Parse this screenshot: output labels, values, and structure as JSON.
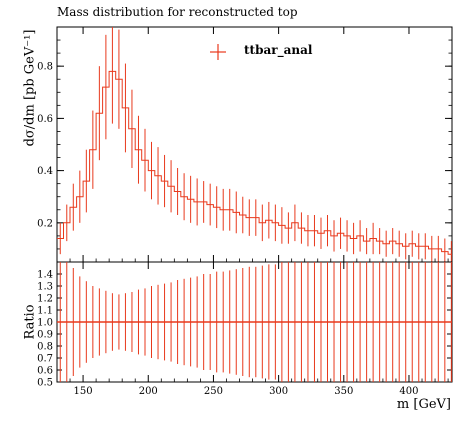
{
  "chart_data": [
    {
      "type": "line",
      "panel": "main",
      "title": "Mass distribution for reconstructed top",
      "ylabel": "dσ/dm [pb GeV⁻¹]",
      "xlabel": "",
      "xlim": [
        130,
        433
      ],
      "ylim": [
        0.05,
        0.95
      ],
      "yticks": [
        "0.2",
        "0.4",
        "0.6",
        "0.8"
      ],
      "series": [
        {
          "name": "ttbar_anal",
          "color": "#e8391c",
          "style": "histogram with error bars",
          "x": [
            130,
            135,
            140,
            145,
            150,
            155,
            160,
            165,
            170,
            175,
            180,
            185,
            190,
            195,
            200,
            205,
            210,
            215,
            220,
            225,
            230,
            235,
            240,
            245,
            250,
            255,
            260,
            265,
            270,
            275,
            280,
            285,
            290,
            295,
            300,
            305,
            310,
            315,
            320,
            325,
            330,
            335,
            340,
            345,
            350,
            355,
            360,
            365,
            370,
            375,
            380,
            385,
            390,
            395,
            400,
            405,
            410,
            415,
            420,
            425,
            430
          ],
          "y": [
            0.14,
            0.2,
            0.26,
            0.3,
            0.36,
            0.48,
            0.62,
            0.72,
            0.78,
            0.75,
            0.64,
            0.56,
            0.48,
            0.44,
            0.4,
            0.38,
            0.36,
            0.34,
            0.32,
            0.3,
            0.29,
            0.28,
            0.28,
            0.27,
            0.26,
            0.25,
            0.25,
            0.24,
            0.23,
            0.22,
            0.22,
            0.2,
            0.21,
            0.2,
            0.19,
            0.18,
            0.2,
            0.18,
            0.17,
            0.17,
            0.16,
            0.17,
            0.15,
            0.16,
            0.15,
            0.14,
            0.15,
            0.13,
            0.14,
            0.13,
            0.12,
            0.13,
            0.12,
            0.11,
            0.12,
            0.11,
            0.11,
            0.1,
            0.1,
            0.09,
            0.08
          ],
          "err": [
            0.06,
            0.07,
            0.09,
            0.1,
            0.12,
            0.15,
            0.18,
            0.2,
            0.2,
            0.19,
            0.17,
            0.15,
            0.13,
            0.12,
            0.11,
            0.11,
            0.1,
            0.1,
            0.09,
            0.09,
            0.09,
            0.09,
            0.08,
            0.08,
            0.08,
            0.08,
            0.08,
            0.08,
            0.07,
            0.07,
            0.07,
            0.07,
            0.07,
            0.07,
            0.07,
            0.06,
            0.07,
            0.06,
            0.06,
            0.06,
            0.06,
            0.06,
            0.06,
            0.06,
            0.06,
            0.06,
            0.06,
            0.05,
            0.06,
            0.05,
            0.05,
            0.05,
            0.05,
            0.05,
            0.05,
            0.05,
            0.05,
            0.05,
            0.05,
            0.05,
            0.05
          ]
        }
      ]
    },
    {
      "type": "line",
      "panel": "ratio",
      "ylabel": "Ratio",
      "xlabel": "m [GeV]",
      "xlim": [
        130,
        433
      ],
      "ylim": [
        0.5,
        1.5
      ],
      "yticks": [
        "0.5",
        "0.6",
        "0.7",
        "0.8",
        "0.9",
        "1.0",
        "1.1",
        "1.2",
        "1.3",
        "1.4"
      ],
      "xticks": [
        150,
        200,
        250,
        300,
        350,
        400
      ],
      "series": [
        {
          "name": "ratio",
          "color": "#e8391c",
          "x": [
            130,
            135,
            140,
            145,
            150,
            155,
            160,
            165,
            170,
            175,
            180,
            185,
            190,
            195,
            200,
            205,
            210,
            215,
            220,
            225,
            230,
            235,
            240,
            245,
            250,
            255,
            260,
            265,
            270,
            275,
            280,
            285,
            290,
            295,
            300,
            305,
            310,
            315,
            320,
            325,
            330,
            335,
            340,
            345,
            350,
            355,
            360,
            365,
            370,
            375,
            380,
            385,
            390,
            395,
            400,
            405,
            410,
            415,
            420,
            425,
            430
          ],
          "y": [
            1.0,
            1.0,
            1.0,
            1.0,
            1.0,
            1.0,
            1.0,
            1.0,
            1.0,
            1.0,
            1.0,
            1.0,
            1.0,
            1.0,
            1.0,
            1.0,
            1.0,
            1.0,
            1.0,
            1.0,
            1.0,
            1.0,
            1.0,
            1.0,
            1.0,
            1.0,
            1.0,
            1.0,
            1.0,
            1.0,
            1.0,
            1.0,
            1.0,
            1.0,
            1.0,
            1.0,
            1.0,
            1.0,
            1.0,
            1.0,
            1.0,
            1.0,
            1.0,
            1.0,
            1.0,
            1.0,
            1.0,
            1.0,
            1.0,
            1.0,
            1.0,
            1.0,
            1.0,
            1.0,
            1.0,
            1.0,
            1.0,
            1.0,
            1.0,
            1.0,
            1.0
          ],
          "err": [
            0.5,
            0.5,
            0.45,
            0.38,
            0.34,
            0.3,
            0.28,
            0.26,
            0.24,
            0.23,
            0.24,
            0.25,
            0.27,
            0.28,
            0.3,
            0.31,
            0.32,
            0.33,
            0.35,
            0.36,
            0.37,
            0.38,
            0.4,
            0.4,
            0.42,
            0.42,
            0.43,
            0.44,
            0.45,
            0.46,
            0.46,
            0.47,
            0.48,
            0.48,
            0.5,
            0.5,
            0.5,
            0.5,
            0.5,
            0.5,
            0.5,
            0.5,
            0.5,
            0.5,
            0.5,
            0.5,
            0.5,
            0.5,
            0.5,
            0.5,
            0.5,
            0.5,
            0.5,
            0.5,
            0.5,
            0.5,
            0.5,
            0.5,
            0.5,
            0.5,
            0.5
          ]
        }
      ]
    }
  ],
  "labels": {
    "title": "Mass distribution for reconstructed top",
    "legend": "ttbar_anal",
    "ylabel_main": "dσ/dm [pb GeV⁻¹]",
    "ylabel_ratio": "Ratio",
    "xlabel": "m [GeV]"
  }
}
